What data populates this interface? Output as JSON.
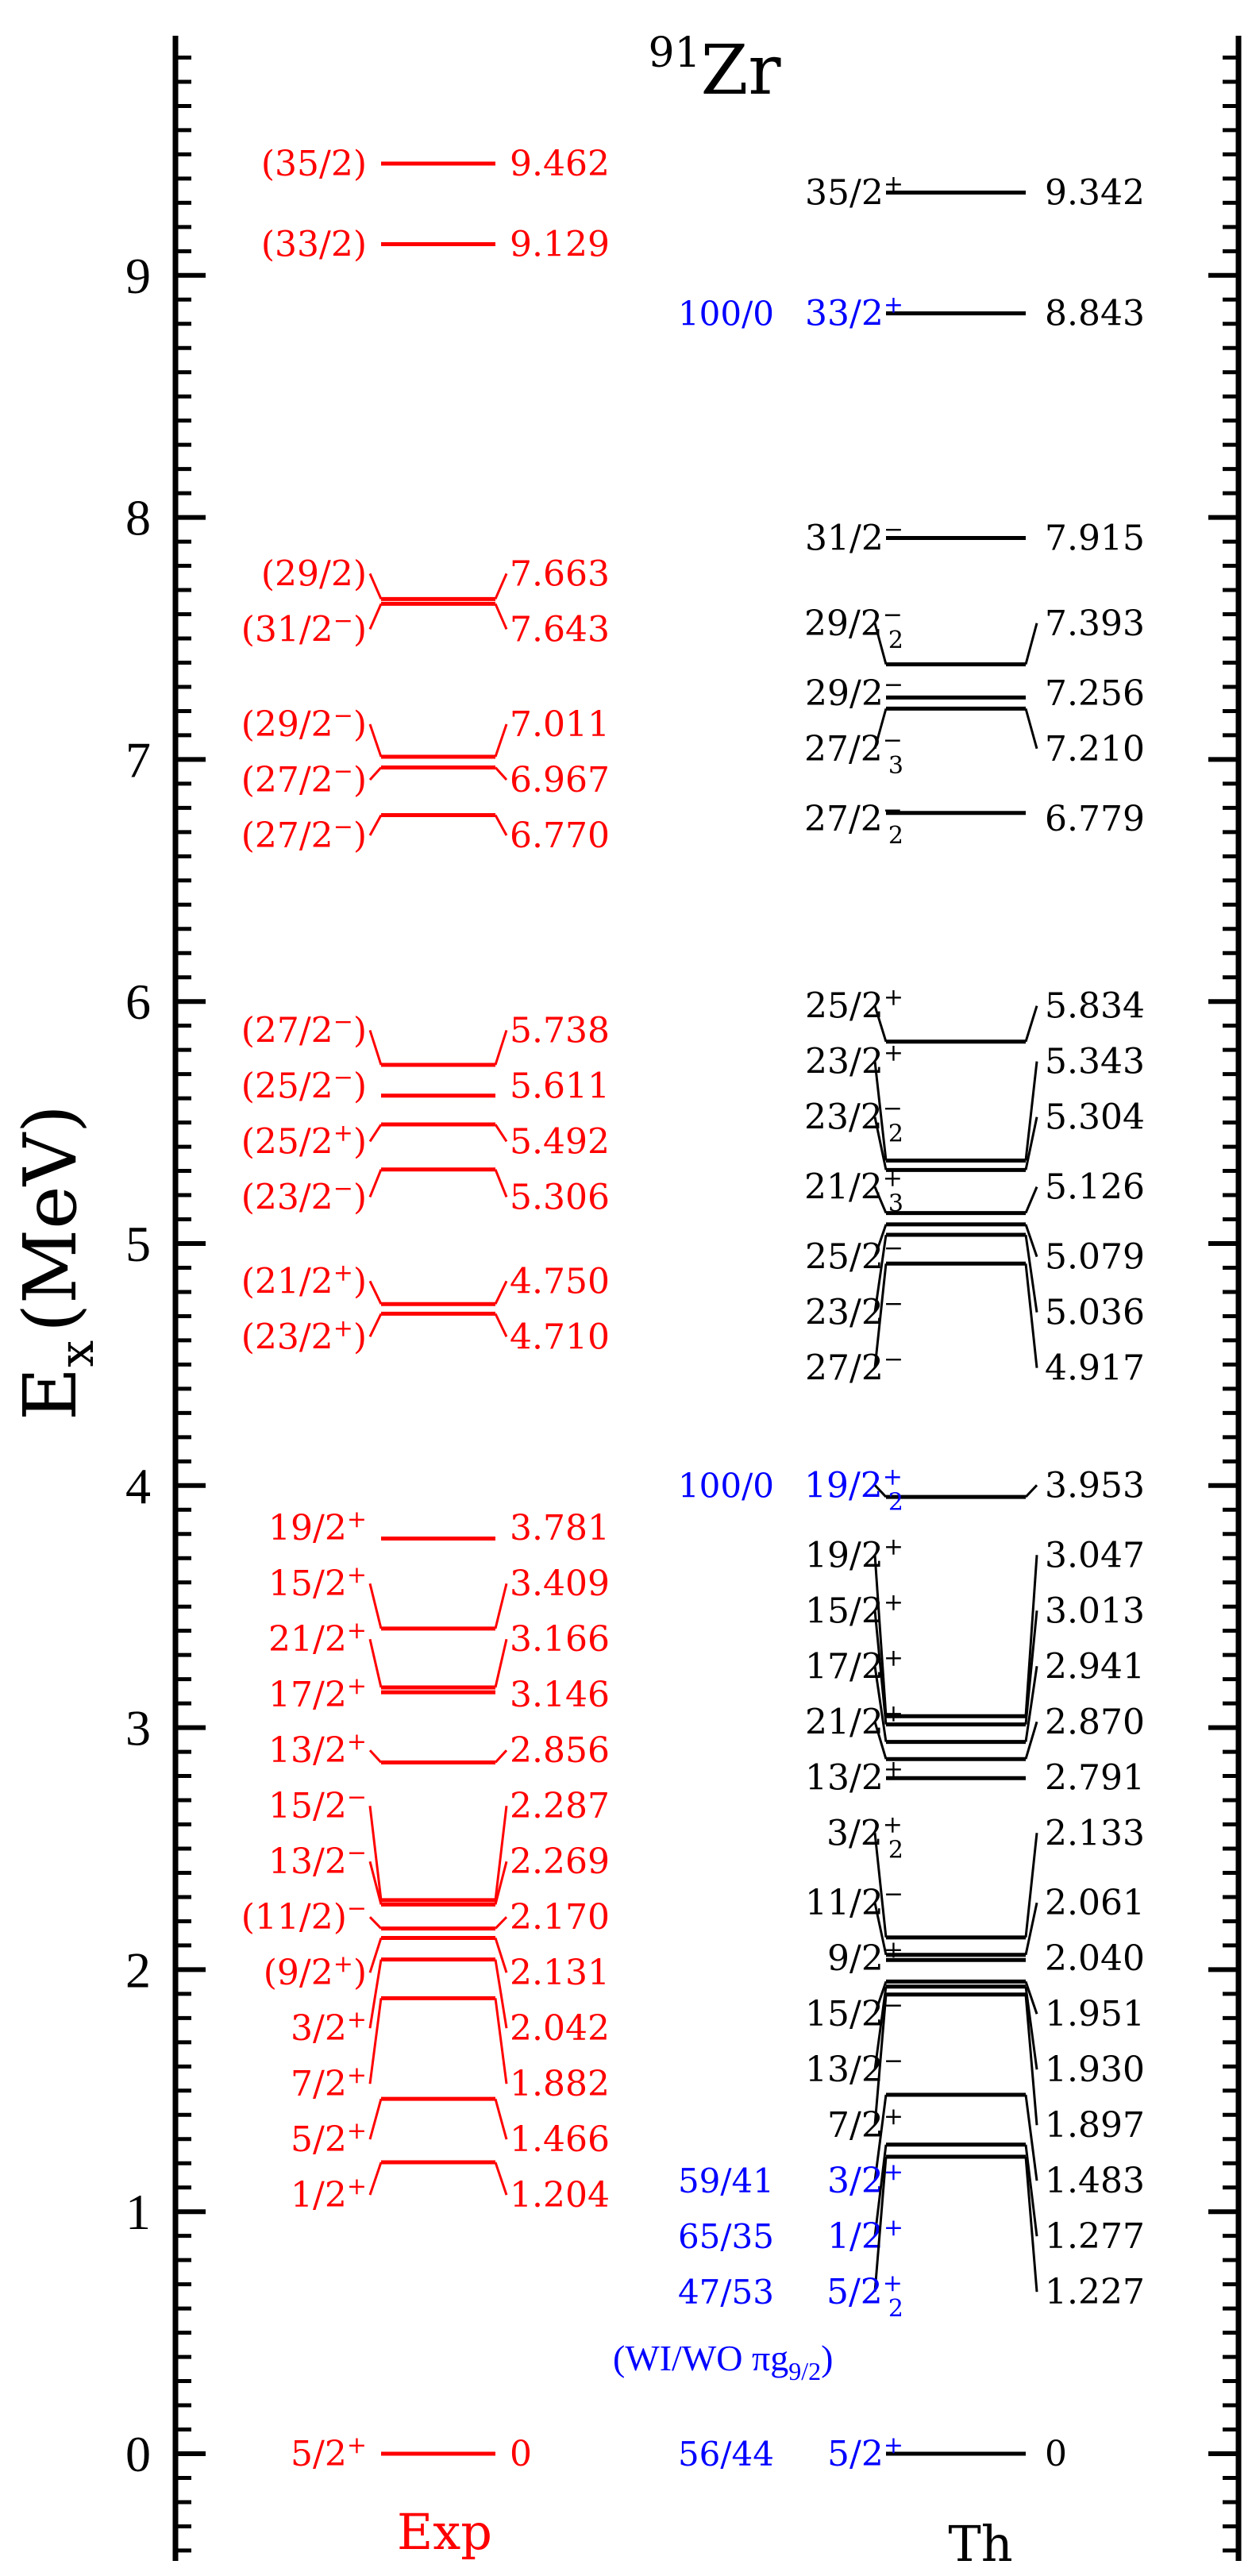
{
  "chart_data": {
    "type": "level-scheme",
    "title": {
      "pre": "91",
      "main": "Zr"
    },
    "ylabel": {
      "main": "E",
      "sub": "x",
      "unit": "(MeV)"
    },
    "ylim": [
      -0.44,
      9.99
    ],
    "yticks": [
      "0",
      "1",
      "2",
      "3",
      "4",
      "5",
      "6",
      "7",
      "8",
      "9"
    ],
    "minor_tick_step": 0.1,
    "colors": {
      "exp": "#ff0000",
      "th": "#000000",
      "note": "#0000ff"
    },
    "columns": {
      "exp": "Exp",
      "th": "Th"
    },
    "annotation": {
      "main": "(WI/WO πg",
      "sub": "9/2",
      "tail": ")"
    },
    "exp_levels": [
      {
        "e": 9.462,
        "label": "9.462",
        "spin": {
          "base": "(35/2)"
        }
      },
      {
        "e": 9.129,
        "label": "9.129",
        "spin": {
          "base": "(33/2)"
        }
      },
      {
        "e": 7.663,
        "label": "7.663",
        "spin": {
          "base": "(29/2)"
        }
      },
      {
        "e": 7.643,
        "label": "7.643",
        "spin": {
          "base": "(31/2",
          "sup": "−",
          "tail": ")"
        }
      },
      {
        "e": 7.011,
        "label": "7.011",
        "spin": {
          "base": "(29/2",
          "sup": "−",
          "tail": ")"
        }
      },
      {
        "e": 6.967,
        "label": "6.967",
        "spin": {
          "base": "(27/2",
          "sup": "−",
          "tail": ")"
        }
      },
      {
        "e": 6.77,
        "label": "6.770",
        "spin": {
          "base": "(27/2",
          "sup": "−",
          "tail": ")"
        }
      },
      {
        "e": 5.738,
        "label": "5.738",
        "spin": {
          "base": "(27/2",
          "sup": "−",
          "tail": ")"
        }
      },
      {
        "e": 5.611,
        "label": "5.611",
        "spin": {
          "base": "(25/2",
          "sup": "−",
          "tail": ")"
        }
      },
      {
        "e": 5.492,
        "label": "5.492",
        "spin": {
          "base": "(25/2",
          "sup": "+",
          "tail": ")"
        }
      },
      {
        "e": 5.306,
        "label": "5.306",
        "spin": {
          "base": "(23/2",
          "sup": "−",
          "tail": ")"
        }
      },
      {
        "e": 4.75,
        "label": "4.750",
        "spin": {
          "base": "(21/2",
          "sup": "+",
          "tail": ")"
        }
      },
      {
        "e": 4.71,
        "label": "4.710",
        "spin": {
          "base": "(23/2",
          "sup": "+",
          "tail": ")"
        }
      },
      {
        "e": 3.781,
        "label": "3.781",
        "spin": {
          "base": "19/2",
          "sup": "+"
        }
      },
      {
        "e": 3.409,
        "label": "3.409",
        "spin": {
          "base": "15/2",
          "sup": "+"
        }
      },
      {
        "e": 3.166,
        "label": "3.166",
        "spin": {
          "base": "21/2",
          "sup": "+"
        }
      },
      {
        "e": 3.146,
        "label": "3.146",
        "spin": {
          "base": "17/2",
          "sup": "+"
        }
      },
      {
        "e": 2.856,
        "label": "2.856",
        "spin": {
          "base": "13/2",
          "sup": "+"
        }
      },
      {
        "e": 2.287,
        "label": "2.287",
        "spin": {
          "base": "15/2",
          "sup": "−"
        }
      },
      {
        "e": 2.269,
        "label": "2.269",
        "spin": {
          "base": "13/2",
          "sup": "−"
        }
      },
      {
        "e": 2.17,
        "label": "2.170",
        "spin": {
          "base": "(11/2)",
          "sup": "−"
        }
      },
      {
        "e": 2.131,
        "label": "2.131",
        "spin": {
          "base": "(9/2",
          "sup": "+",
          "tail": ")"
        }
      },
      {
        "e": 2.042,
        "label": "2.042",
        "spin": {
          "base": "3/2",
          "sup": "+"
        }
      },
      {
        "e": 1.882,
        "label": "1.882",
        "spin": {
          "base": "7/2",
          "sup": "+"
        }
      },
      {
        "e": 1.466,
        "label": "1.466",
        "spin": {
          "base": "5/2",
          "sup": "+"
        }
      },
      {
        "e": 1.204,
        "label": "1.204",
        "spin": {
          "base": "1/2",
          "sup": "+"
        }
      },
      {
        "e": 0,
        "label": "0",
        "spin": {
          "base": "5/2",
          "sup": "+"
        }
      }
    ],
    "th_levels": [
      {
        "e": 9.342,
        "label": "9.342",
        "spin": {
          "base": "35/2",
          "sup": "+"
        }
      },
      {
        "e": 8.843,
        "label": "8.843",
        "spin": {
          "base": "33/2",
          "sup": "+"
        },
        "ratio": "100/0",
        "highlight": true
      },
      {
        "e": 7.915,
        "label": "7.915",
        "spin": {
          "base": "31/2",
          "sup": "−"
        }
      },
      {
        "e": 7.393,
        "label": "7.393",
        "spin": {
          "base": "29/2",
          "sup": "−",
          "sub": "2"
        }
      },
      {
        "e": 7.256,
        "label": "7.256",
        "spin": {
          "base": "29/2",
          "sup": "−"
        }
      },
      {
        "e": 7.21,
        "label": "7.210",
        "spin": {
          "base": "27/2",
          "sup": "−",
          "sub": "3"
        }
      },
      {
        "e": 6.779,
        "label": "6.779",
        "spin": {
          "base": "27/2",
          "sup": "−",
          "sub": "2"
        }
      },
      {
        "e": 5.834,
        "label": "5.834",
        "spin": {
          "base": "25/2",
          "sup": "+"
        }
      },
      {
        "e": 5.343,
        "label": "5.343",
        "spin": {
          "base": "23/2",
          "sup": "+"
        }
      },
      {
        "e": 5.304,
        "label": "5.304",
        "spin": {
          "base": "23/2",
          "sup": "−",
          "sub": "2"
        }
      },
      {
        "e": 5.126,
        "label": "5.126",
        "spin": {
          "base": "21/2",
          "sup": "+",
          "sub": "3"
        }
      },
      {
        "e": 5.079,
        "label": "5.079",
        "spin": {
          "base": "25/2",
          "sup": "−"
        }
      },
      {
        "e": 5.036,
        "label": "5.036",
        "spin": {
          "base": "23/2",
          "sup": "−"
        }
      },
      {
        "e": 4.917,
        "label": "4.917",
        "spin": {
          "base": "27/2",
          "sup": "−"
        }
      },
      {
        "e": 3.953,
        "label": "3.953",
        "spin": {
          "base": "19/2",
          "sup": "+",
          "sub": "2"
        },
        "ratio": "100/0",
        "highlight": true
      },
      {
        "e": 3.047,
        "label": "3.047",
        "spin": {
          "base": "19/2",
          "sup": "+"
        }
      },
      {
        "e": 3.013,
        "label": "3.013",
        "spin": {
          "base": "15/2",
          "sup": "+"
        }
      },
      {
        "e": 2.941,
        "label": "2.941",
        "spin": {
          "base": "17/2",
          "sup": "+"
        }
      },
      {
        "e": 2.87,
        "label": "2.870",
        "spin": {
          "base": "21/2",
          "sup": "+"
        }
      },
      {
        "e": 2.791,
        "label": "2.791",
        "spin": {
          "base": "13/2",
          "sup": "+"
        }
      },
      {
        "e": 2.133,
        "label": "2.133",
        "spin": {
          "base": "3/2",
          "sup": "+",
          "sub": "2"
        }
      },
      {
        "e": 2.061,
        "label": "2.061",
        "spin": {
          "base": "11/2",
          "sup": "−"
        }
      },
      {
        "e": 2.04,
        "label": "2.040",
        "spin": {
          "base": "9/2",
          "sup": "+"
        }
      },
      {
        "e": 1.951,
        "label": "1.951",
        "spin": {
          "base": "15/2",
          "sup": "−"
        }
      },
      {
        "e": 1.93,
        "label": "1.930",
        "spin": {
          "base": "13/2",
          "sup": "−"
        }
      },
      {
        "e": 1.897,
        "label": "1.897",
        "spin": {
          "base": "7/2",
          "sup": "+"
        }
      },
      {
        "e": 1.483,
        "label": "1.483",
        "spin": {
          "base": "3/2",
          "sup": "+"
        },
        "ratio": "59/41",
        "highlight": true
      },
      {
        "e": 1.277,
        "label": "1.277",
        "spin": {
          "base": "1/2",
          "sup": "+"
        },
        "ratio": "65/35",
        "highlight": true
      },
      {
        "e": 1.227,
        "label": "1.227",
        "spin": {
          "base": "5/2",
          "sup": "+",
          "sub": "2"
        },
        "ratio": "47/53",
        "highlight": true
      },
      {
        "e": 0,
        "label": "0",
        "spin": {
          "base": "5/2",
          "sup": "+"
        },
        "ratio": "56/44",
        "highlight": true
      }
    ]
  }
}
